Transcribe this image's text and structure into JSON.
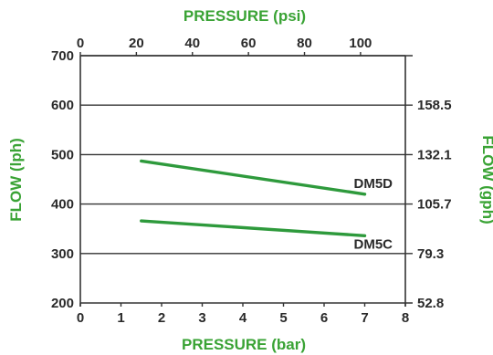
{
  "chart_data": {
    "type": "line",
    "x_bottom": {
      "label": "PRESSURE (bar)",
      "range": [
        0,
        8
      ],
      "ticks": [
        "0",
        "1",
        "2",
        "3",
        "4",
        "5",
        "6",
        "7",
        "8"
      ]
    },
    "x_top": {
      "label": "PRESSURE (psi)",
      "range": [
        0,
        116
      ],
      "ticks": [
        "0",
        "20",
        "40",
        "60",
        "80",
        "100"
      ],
      "tick_values": [
        0,
        20,
        40,
        60,
        80,
        100
      ]
    },
    "y_left": {
      "label": "FLOW (lph)",
      "range": [
        200,
        700
      ],
      "ticks": [
        "200",
        "300",
        "400",
        "500",
        "600",
        "700"
      ],
      "tick_values": [
        200,
        300,
        400,
        500,
        600,
        700
      ]
    },
    "y_right": {
      "label": "FLOW (gph)",
      "ticks": [
        "52.8",
        "79.3",
        "105.7",
        "132.1",
        "158.5"
      ],
      "tick_lph_values": [
        200,
        300,
        400,
        500,
        600
      ]
    },
    "grid": "horizontal",
    "series": [
      {
        "name": "DM5D",
        "x": [
          1.5,
          7
        ],
        "y": [
          487,
          420
        ]
      },
      {
        "name": "DM5C",
        "x": [
          1.5,
          7
        ],
        "y": [
          366,
          336
        ]
      }
    ],
    "colors": {
      "axis_title": "#3aa335",
      "series_line": "#2e9a3c",
      "text": "#2a2a2a",
      "frame": "#333333"
    }
  }
}
